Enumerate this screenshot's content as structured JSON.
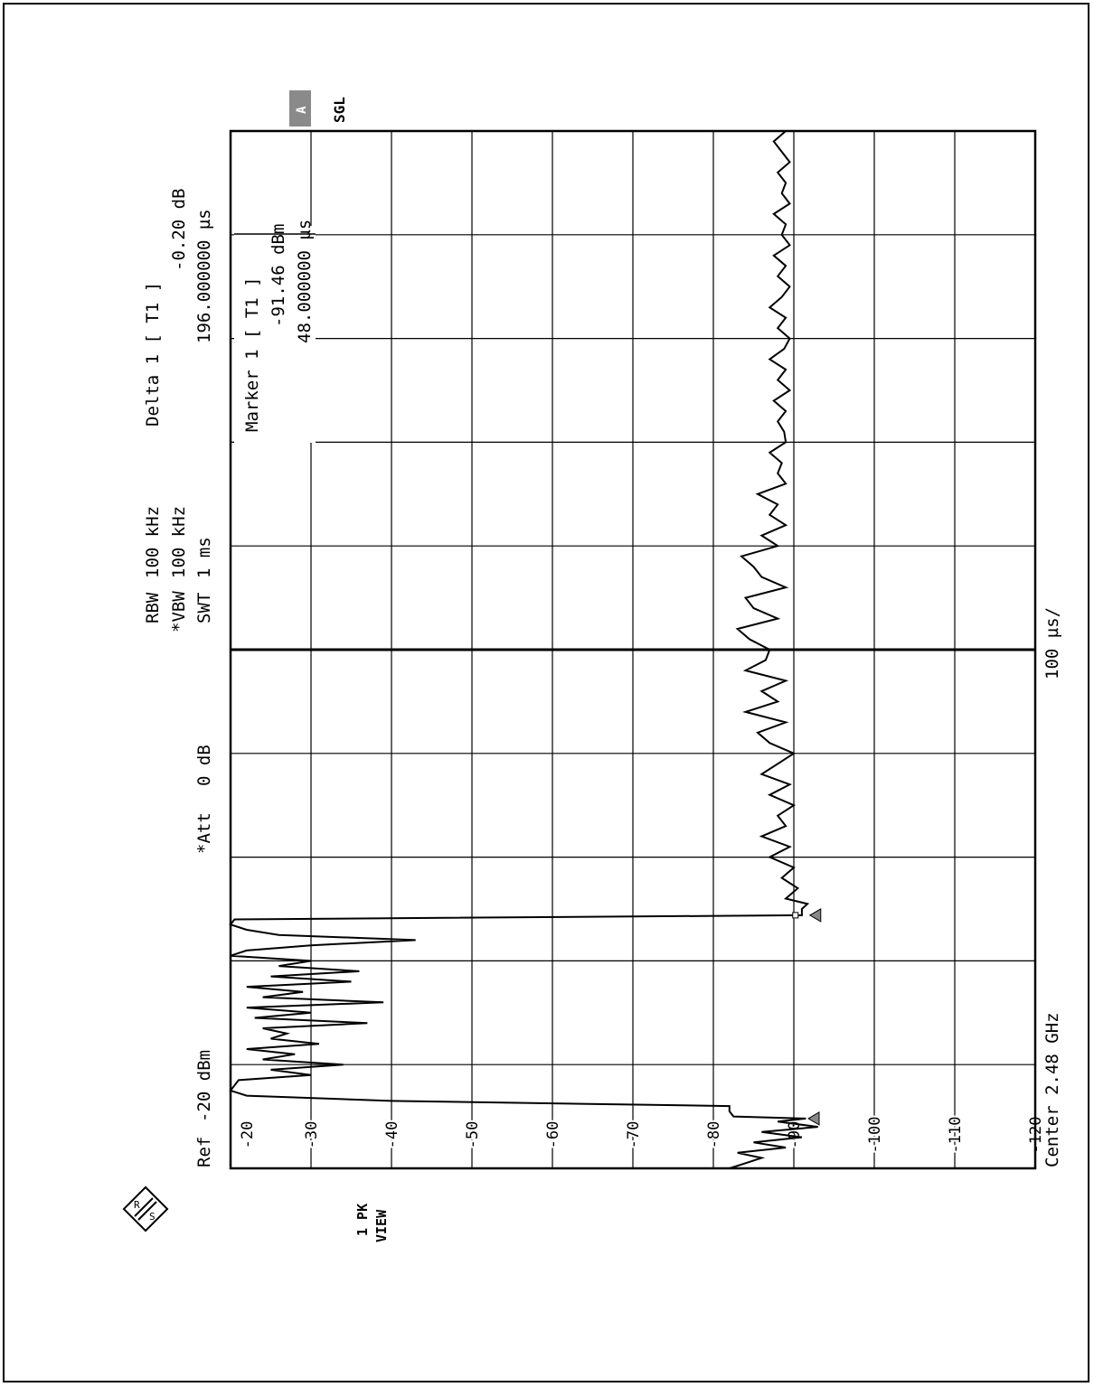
{
  "header": {
    "ref_label": "Ref",
    "ref_value": "-20 dBm",
    "att_label": "*Att",
    "att_value": "0 dB",
    "rbw_label": "RBW",
    "rbw_value": "100 kHz",
    "vbw_label": "*VBW",
    "vbw_value": "100 kHz",
    "swt_label": "SWT",
    "swt_value": "1 ms",
    "delta_label": "Delta 1 [ T1 ]",
    "delta_level": "-0.20 dB",
    "delta_time": "196.000000 µs"
  },
  "marker_box": {
    "label": "Marker 1 [ T1 ]",
    "level": "-91.46 dBm",
    "time": "48.000000 µs"
  },
  "side": {
    "a_badge": "A",
    "sgl": "SGL",
    "trace_mode": "1 PK",
    "view": "VIEW",
    "logo": "R&S"
  },
  "footer": {
    "center": "Center 2.48 GHz",
    "span_div": "100 µs/"
  },
  "chart_data": {
    "type": "line",
    "title": "",
    "xlabel": "",
    "ylabel": "",
    "x_unit": "µs",
    "y_unit": "dBm",
    "xlim": [
      0,
      1000
    ],
    "ylim": [
      -120,
      -20
    ],
    "ticks_y": [
      "-20",
      "-30",
      "-40",
      "-50",
      "-60",
      "-70",
      "-80",
      "-90",
      "-100",
      "-110",
      "-120"
    ],
    "grid": true,
    "series": [
      {
        "x": [
          0,
          5,
          10,
          15,
          20,
          25,
          30,
          35,
          40,
          45,
          48,
          50,
          55,
          60,
          65,
          70,
          75,
          80,
          85,
          90,
          95,
          100,
          105,
          110,
          115,
          120,
          125,
          130,
          135,
          140,
          145,
          150,
          155,
          160,
          165,
          170,
          175,
          180,
          185,
          190,
          195,
          200,
          205,
          210,
          215,
          220,
          225,
          230,
          235,
          240,
          244,
          250,
          255,
          260,
          270,
          280,
          290,
          300,
          310,
          320,
          330,
          340,
          350,
          360,
          370,
          380,
          390,
          400,
          410,
          420,
          430,
          440,
          450,
          460,
          470,
          480,
          490,
          500,
          510,
          520,
          530,
          540,
          550,
          560,
          570,
          580,
          590,
          600,
          610,
          620,
          630,
          640,
          650,
          660,
          670,
          680,
          690,
          700,
          710,
          720,
          730,
          740,
          750,
          760,
          770,
          780,
          790,
          800,
          810,
          820,
          830,
          840,
          850,
          860,
          870,
          880,
          890,
          900,
          910,
          920,
          930,
          940,
          950,
          960,
          970,
          980,
          990,
          1000
        ],
        "y": [
          -82,
          -84,
          -86,
          -83,
          -89,
          -85,
          -91,
          -86,
          -93,
          -88,
          -91.5,
          -82.5,
          -82,
          -82,
          -40,
          -22,
          -20,
          -20.5,
          -21,
          -30,
          -25,
          -34,
          -24,
          -28,
          -22,
          -31,
          -25,
          -27,
          -24,
          -37,
          -23,
          -30,
          -22,
          -39,
          -24,
          -29,
          -22,
          -35,
          -25,
          -36,
          -26,
          -30,
          -20,
          -22,
          -30,
          -43,
          -26,
          -22,
          -20,
          -20.5,
          -91,
          -91,
          -91.7,
          -89,
          -90.5,
          -88.5,
          -90,
          -87,
          -89.5,
          -86,
          -89,
          -88,
          -90,
          -87,
          -89.5,
          -86,
          -88,
          -90,
          -87,
          -85.5,
          -89,
          -84,
          -88,
          -86,
          -89,
          -84,
          -86.5,
          -87,
          -84.5,
          -83,
          -88,
          -85,
          -84,
          -89,
          -86,
          -85,
          -83.5,
          -88,
          -86,
          -89,
          -87,
          -88,
          -85.5,
          -89,
          -88,
          -88.5,
          -87,
          -89,
          -88.8,
          -88,
          -89,
          -87.5,
          -89.5,
          -88,
          -89,
          -87,
          -88.8,
          -89.5,
          -88,
          -89,
          -87,
          -88.5,
          -89.5,
          -88,
          -89,
          -87.5,
          -89.5,
          -88.5,
          -89,
          -87.5,
          -89.5,
          -88.5,
          -89,
          -88,
          -89.5,
          -88.5,
          -87.5,
          -89
        ]
      }
    ],
    "marker_1": {
      "x": 48,
      "y": -91.46
    },
    "delta_1": {
      "x": 244,
      "y": -91.66
    },
    "marker_readout": {
      "x": 48,
      "y": -91.46,
      "unit": "dBm"
    },
    "delta_readout": {
      "dx": 196,
      "dy": -0.2,
      "unit": "dB"
    },
    "reference_line_x": 500
  }
}
